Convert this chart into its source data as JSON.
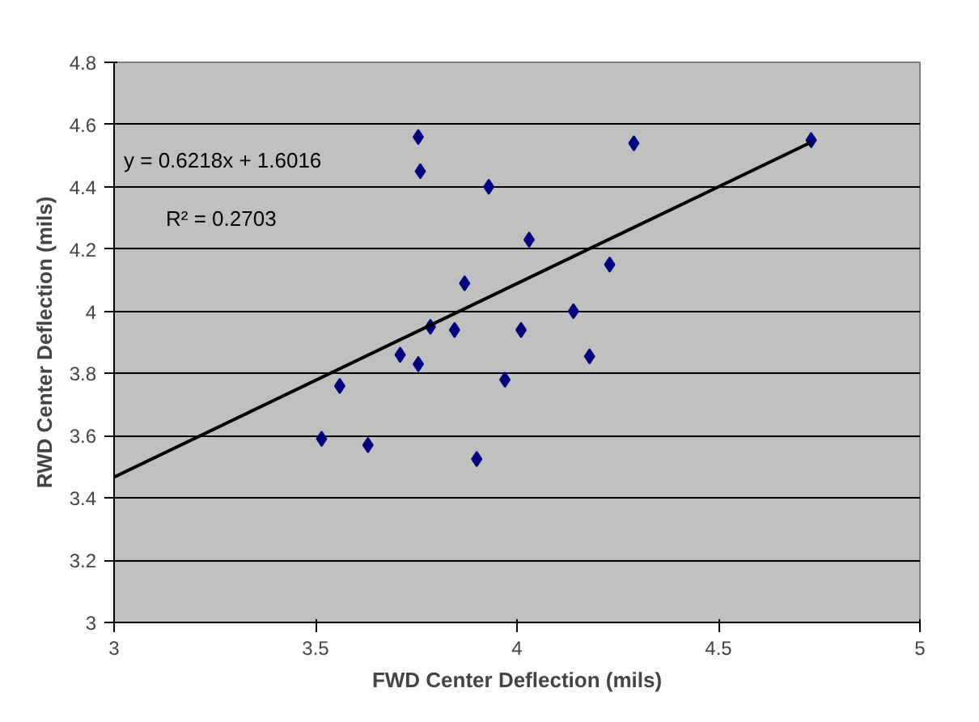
{
  "chart_data": {
    "type": "scatter",
    "xlabel": "FWD Center Deflection (mils)",
    "ylabel": "RWD Center Deflection (mils)",
    "xlim": [
      3,
      5
    ],
    "xticks": [
      3,
      3.5,
      4,
      4.5,
      5
    ],
    "ylim": [
      3,
      4.8
    ],
    "yticks": [
      3,
      3.2,
      3.4,
      3.6,
      3.8,
      4,
      4.2,
      4.4,
      4.6,
      4.8
    ],
    "grid": "y",
    "series": [
      {
        "color": "#000080",
        "marker": "diamond",
        "x": [
          3.755,
          3.76,
          3.93,
          4.03,
          4.23,
          3.87,
          4.14,
          3.785,
          3.845,
          4.01,
          3.71,
          4.18,
          3.755,
          3.97,
          3.56,
          3.515,
          3.63,
          3.9,
          4.29,
          4.73
        ],
        "values": [
          4.56,
          4.45,
          4.4,
          4.23,
          4.15,
          4.09,
          4.0,
          3.95,
          3.94,
          3.94,
          3.86,
          3.855,
          3.83,
          3.78,
          3.76,
          3.59,
          3.57,
          3.525,
          4.54,
          4.55
        ]
      },
      {
        "type": "line",
        "color": "#000000",
        "x": [
          3,
          4.73
        ],
        "values": [
          3.467,
          4.543
        ]
      }
    ],
    "annotations": [
      "y = 0.6218x + 1.6016",
      "R² = 0.2703"
    ]
  }
}
